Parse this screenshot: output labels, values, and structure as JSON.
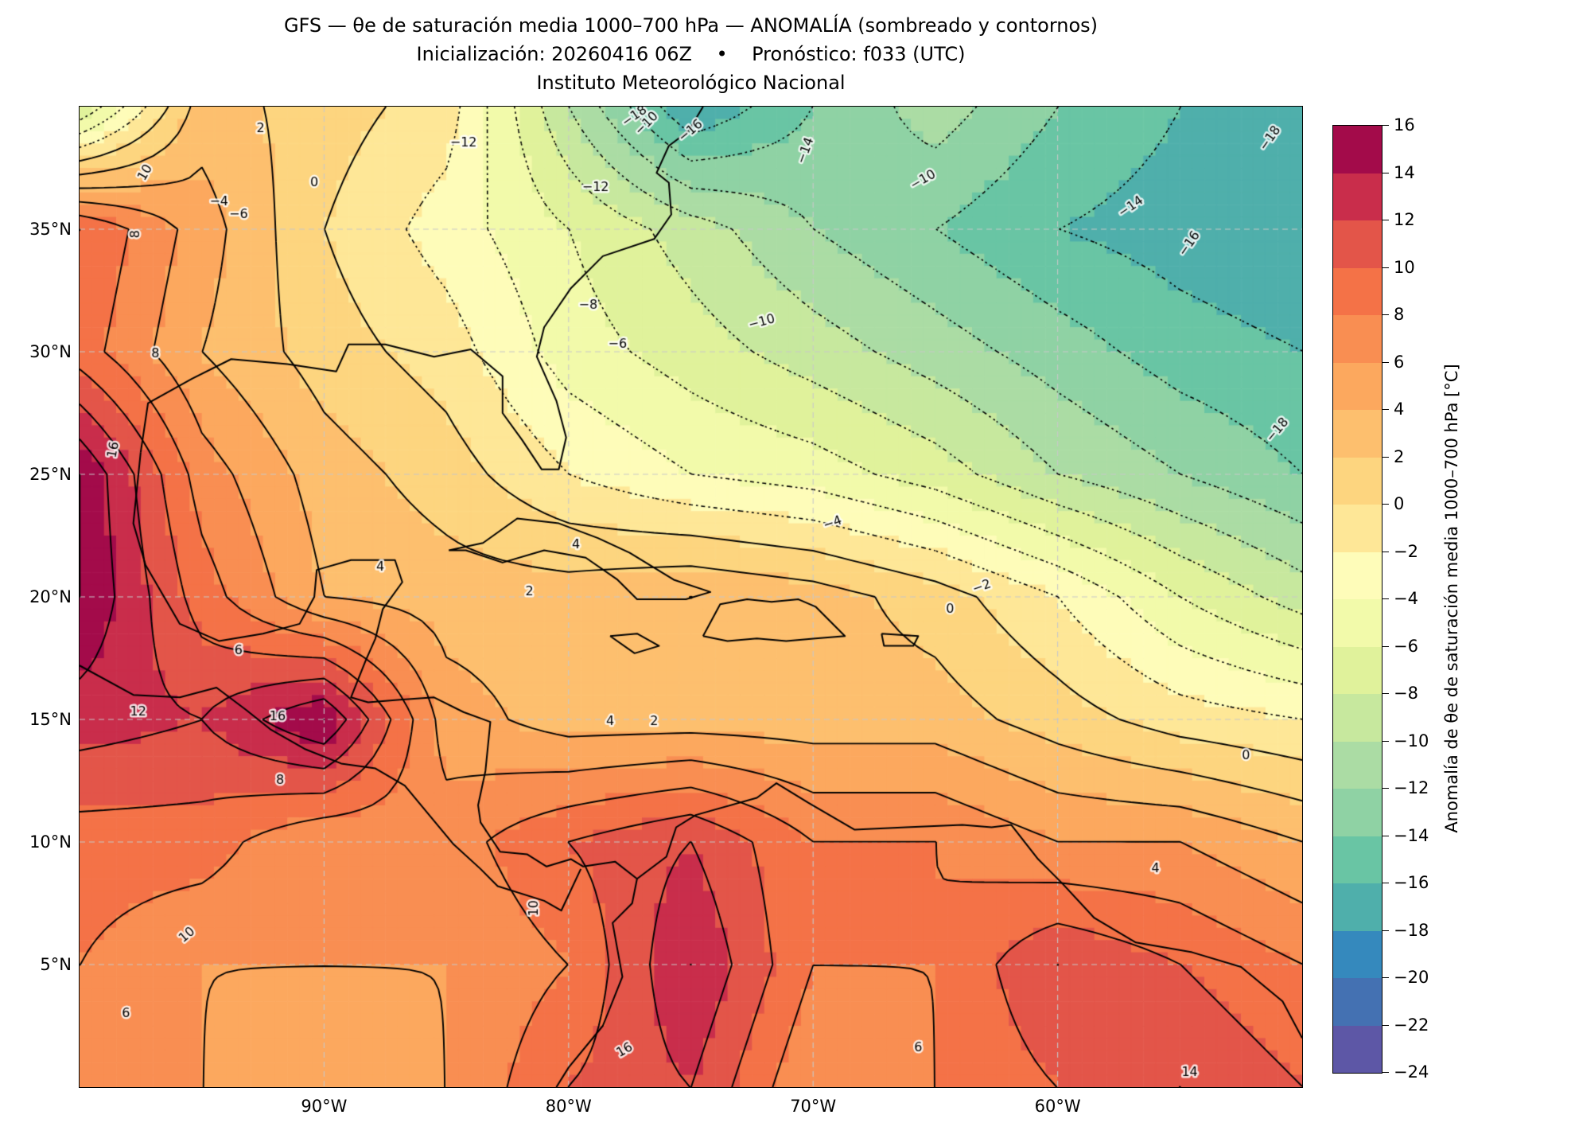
{
  "title": {
    "line1": "GFS — θe de saturación media 1000–700 hPa — ANOMALÍA (sombreado y contornos)",
    "line2": "Inicialización: 20260416 06Z    •    Pronóstico: f033 (UTC)",
    "line3": "Instituto Meteorológico Nacional"
  },
  "axes": {
    "lat_ticks": [
      {
        "label": "35°N",
        "lat": 35
      },
      {
        "label": "30°N",
        "lat": 30
      },
      {
        "label": "25°N",
        "lat": 25
      },
      {
        "label": "20°N",
        "lat": 20
      },
      {
        "label": "15°N",
        "lat": 15
      },
      {
        "label": "10°N",
        "lat": 10
      },
      {
        "label": "5°N",
        "lat": 5
      }
    ],
    "lon_ticks": [
      {
        "label": "90°W",
        "lon": -90
      },
      {
        "label": "80°W",
        "lon": -80
      },
      {
        "label": "70°W",
        "lon": -70
      },
      {
        "label": "60°W",
        "lon": -60
      }
    ]
  },
  "colorbar": {
    "label": "Anomalía de θe de saturación media 1000–700 hPa [°C]",
    "min": -24,
    "max": 16,
    "step": 2,
    "tick_values": [
      16,
      14,
      12,
      10,
      8,
      6,
      4,
      2,
      0,
      -2,
      -4,
      -6,
      -8,
      -10,
      -12,
      -14,
      -16,
      -18,
      -20,
      -22,
      -24
    ],
    "bins": [
      {
        "from": -24,
        "to": -22,
        "color": "#5d57a6"
      },
      {
        "from": -22,
        "to": -20,
        "color": "#4471b2"
      },
      {
        "from": -20,
        "to": -18,
        "color": "#3589bd"
      },
      {
        "from": -18,
        "to": -16,
        "color": "#4fafab"
      },
      {
        "from": -16,
        "to": -14,
        "color": "#69c5a4"
      },
      {
        "from": -14,
        "to": -12,
        "color": "#8fd2a4"
      },
      {
        "from": -12,
        "to": -10,
        "color": "#abdca4"
      },
      {
        "from": -10,
        "to": -8,
        "color": "#c7e89e"
      },
      {
        "from": -8,
        "to": -6,
        "color": "#e0f29b"
      },
      {
        "from": -6,
        "to": -4,
        "color": "#f2faaa"
      },
      {
        "from": -4,
        "to": -2,
        "color": "#fefcb9"
      },
      {
        "from": -2,
        "to": 0,
        "color": "#fee797"
      },
      {
        "from": 0,
        "to": 2,
        "color": "#fdd57f"
      },
      {
        "from": 2,
        "to": 4,
        "color": "#fdbf6e"
      },
      {
        "from": 4,
        "to": 6,
        "color": "#fca85e"
      },
      {
        "from": 6,
        "to": 8,
        "color": "#f98e52"
      },
      {
        "from": 8,
        "to": 10,
        "color": "#f47247"
      },
      {
        "from": 10,
        "to": 12,
        "color": "#e35549"
      },
      {
        "from": 12,
        "to": 14,
        "color": "#c92d4b"
      },
      {
        "from": 14,
        "to": 16,
        "color": "#a30b4a"
      }
    ]
  },
  "chart_data": {
    "type": "heatmap",
    "title": "GFS — θe de saturación media 1000–700 hPa — ANOMALÍA (sombreado y contornos)",
    "units": "°C",
    "extent": {
      "lon_min": -100,
      "lon_max": -50,
      "lat_min": 0,
      "lat_max": 40
    },
    "x_lon": [
      -100,
      -95,
      -90,
      -85,
      -80,
      -75,
      -70,
      -65,
      -60,
      -55,
      -50
    ],
    "y_lat": [
      40,
      35,
      30,
      25,
      20,
      15,
      10,
      5,
      0
    ],
    "values": [
      [
        -8,
        3,
        1,
        -1,
        -10,
        -18,
        -14,
        -11,
        -14,
        -16,
        -18
      ],
      [
        10,
        5,
        0,
        -3,
        -6,
        -9,
        -12,
        -14,
        -16,
        -17,
        -18
      ],
      [
        9,
        4,
        1,
        -1,
        -5,
        -7,
        -9,
        -11,
        -13,
        -15,
        -16
      ],
      [
        16,
        7,
        3,
        1,
        -2,
        -4,
        -5,
        -7,
        -10,
        -12,
        -14
      ],
      [
        16,
        9,
        4,
        3,
        3,
        4,
        3,
        1,
        -2,
        -6,
        -9
      ],
      [
        13,
        12,
        16,
        5,
        3,
        3,
        3,
        3,
        1,
        -1,
        -2
      ],
      [
        9,
        9,
        6,
        7,
        10,
        12,
        8,
        8,
        6,
        6,
        4
      ],
      [
        8,
        6,
        6,
        6,
        8,
        14,
        8,
        8,
        12,
        10,
        8
      ],
      [
        6,
        6,
        5,
        6,
        10,
        12,
        6,
        8,
        10,
        12,
        10
      ]
    ],
    "contour_level_min": -18,
    "contour_level_max": 16,
    "contour_level_step": 2,
    "contour_style": {
      "negative": "dotted",
      "positive": "solid"
    },
    "gridlines": {
      "lats": [
        5,
        10,
        15,
        20,
        25,
        30,
        35
      ],
      "lons": [
        -90,
        -80,
        -70,
        -60
      ]
    },
    "contour_labels": [
      {
        "v": -18,
        "lon": -77.3,
        "lat": 39.6,
        "rot": -35
      },
      {
        "v": -18,
        "lon": -51.3,
        "lat": 38.7,
        "rot": -55
      },
      {
        "v": -18,
        "lon": -51.0,
        "lat": 26.8,
        "rot": -50
      },
      {
        "v": -16,
        "lon": -54.6,
        "lat": 34.4,
        "rot": -55
      },
      {
        "v": -16,
        "lon": -75.0,
        "lat": 39.0,
        "rot": -40
      },
      {
        "v": -14,
        "lon": -70.3,
        "lat": 38.2,
        "rot": -70
      },
      {
        "v": -14,
        "lon": -57.0,
        "lat": 35.9,
        "rot": -35
      },
      {
        "v": -12,
        "lon": -84.3,
        "lat": 38.5,
        "rot": 0
      },
      {
        "v": -12,
        "lon": -78.9,
        "lat": 36.7,
        "rot": 0
      },
      {
        "v": -10,
        "lon": -76.8,
        "lat": 39.3,
        "rot": -45
      },
      {
        "v": -10,
        "lon": -65.5,
        "lat": 37.0,
        "rot": -30
      },
      {
        "v": -10,
        "lon": -72.1,
        "lat": 31.2,
        "rot": -15
      },
      {
        "v": -8,
        "lon": -79.2,
        "lat": 31.9,
        "rot": 0
      },
      {
        "v": -6,
        "lon": -78.0,
        "lat": 30.3,
        "rot": 0
      },
      {
        "v": -6,
        "lon": -93.5,
        "lat": 35.6,
        "rot": 0
      },
      {
        "v": -4,
        "lon": -94.3,
        "lat": 36.1,
        "rot": 0
      },
      {
        "v": -4,
        "lon": -69.2,
        "lat": 23.0,
        "rot": -20
      },
      {
        "v": -2,
        "lon": -63.1,
        "lat": 20.4,
        "rot": -20
      },
      {
        "v": 0,
        "lon": -90.4,
        "lat": 36.9,
        "rot": 0
      },
      {
        "v": 0,
        "lon": -64.4,
        "lat": 19.5,
        "rot": 0
      },
      {
        "v": 0,
        "lon": -52.3,
        "lat": 13.5,
        "rot": 0
      },
      {
        "v": 2,
        "lon": -92.6,
        "lat": 39.1,
        "rot": 0
      },
      {
        "v": 2,
        "lon": -81.6,
        "lat": 20.2,
        "rot": 0
      },
      {
        "v": 2,
        "lon": -76.5,
        "lat": 14.9,
        "rot": 0
      },
      {
        "v": 4,
        "lon": -79.7,
        "lat": 22.1,
        "rot": 0
      },
      {
        "v": 4,
        "lon": -87.7,
        "lat": 21.2,
        "rot": 0
      },
      {
        "v": 4,
        "lon": -78.3,
        "lat": 14.9,
        "rot": 0
      },
      {
        "v": 4,
        "lon": -56.0,
        "lat": 8.9,
        "rot": 0
      },
      {
        "v": 6,
        "lon": -93.5,
        "lat": 17.8,
        "rot": 0
      },
      {
        "v": 6,
        "lon": -98.1,
        "lat": 3.0,
        "rot": 0
      },
      {
        "v": 6,
        "lon": -65.7,
        "lat": 1.6,
        "rot": 0
      },
      {
        "v": 8,
        "lon": -97.7,
        "lat": 34.8,
        "rot": -90
      },
      {
        "v": 8,
        "lon": -96.9,
        "lat": 29.9,
        "rot": 0
      },
      {
        "v": 8,
        "lon": -91.8,
        "lat": 12.5,
        "rot": 0
      },
      {
        "v": 10,
        "lon": -97.3,
        "lat": 37.3,
        "rot": -60
      },
      {
        "v": 10,
        "lon": -95.6,
        "lat": 6.2,
        "rot": -40
      },
      {
        "v": 10,
        "lon": -81.4,
        "lat": 7.3,
        "rot": -90
      },
      {
        "v": 12,
        "lon": -97.6,
        "lat": 15.3,
        "rot": 0
      },
      {
        "v": 14,
        "lon": -54.6,
        "lat": 0.6,
        "rot": 0
      },
      {
        "v": 16,
        "lon": -91.9,
        "lat": 15.1,
        "rot": 0
      },
      {
        "v": 16,
        "lon": -98.6,
        "lat": 26.0,
        "rot": -80
      },
      {
        "v": 16,
        "lon": -77.7,
        "lat": 1.5,
        "rot": -30
      }
    ],
    "coastlines": [
      [
        [
          -97.5,
          25.9
        ],
        [
          -97.2,
          27.9
        ],
        [
          -95.4,
          28.9
        ],
        [
          -93.8,
          29.7
        ],
        [
          -91.5,
          29.5
        ],
        [
          -89.5,
          29.2
        ],
        [
          -89.0,
          30.3
        ],
        [
          -87.5,
          30.3
        ],
        [
          -85.5,
          29.8
        ],
        [
          -84.0,
          30.1
        ],
        [
          -82.7,
          29.0
        ],
        [
          -82.7,
          27.5
        ],
        [
          -81.9,
          26.4
        ],
        [
          -81.1,
          25.2
        ],
        [
          -80.4,
          25.2
        ],
        [
          -80.1,
          26.5
        ],
        [
          -80.5,
          28.0
        ],
        [
          -81.3,
          29.8
        ],
        [
          -81.0,
          31.0
        ],
        [
          -79.9,
          32.6
        ],
        [
          -78.6,
          33.9
        ],
        [
          -76.5,
          34.6
        ],
        [
          -75.8,
          35.6
        ],
        [
          -75.9,
          36.9
        ],
        [
          -76.4,
          37.3
        ],
        [
          -75.9,
          38.4
        ],
        [
          -75.1,
          39.0
        ],
        [
          -74.5,
          40.0
        ]
      ],
      [
        [
          -97.5,
          25.9
        ],
        [
          -97.8,
          23.0
        ],
        [
          -97.3,
          21.3
        ],
        [
          -95.9,
          18.9
        ],
        [
          -94.3,
          18.2
        ],
        [
          -92.5,
          18.5
        ],
        [
          -91.0,
          18.9
        ],
        [
          -90.4,
          20.0
        ],
        [
          -90.3,
          21.1
        ],
        [
          -88.9,
          21.5
        ],
        [
          -87.1,
          21.5
        ],
        [
          -86.8,
          20.6
        ],
        [
          -87.6,
          19.5
        ],
        [
          -87.9,
          18.3
        ],
        [
          -88.3,
          17.4
        ],
        [
          -88.9,
          15.9
        ],
        [
          -88.2,
          15.7
        ],
        [
          -86.9,
          15.8
        ],
        [
          -85.5,
          15.9
        ],
        [
          -84.3,
          15.3
        ],
        [
          -83.2,
          14.9
        ],
        [
          -83.4,
          12.9
        ],
        [
          -83.7,
          11.5
        ],
        [
          -83.6,
          10.8
        ],
        [
          -82.8,
          9.6
        ],
        [
          -81.7,
          9.5
        ],
        [
          -80.9,
          9.0
        ],
        [
          -79.9,
          9.3
        ],
        [
          -79.4,
          9.0
        ],
        [
          -78.1,
          9.2
        ],
        [
          -77.2,
          8.5
        ],
        [
          -77.4,
          7.5
        ],
        [
          -78.2,
          6.7
        ],
        [
          -77.8,
          4.5
        ],
        [
          -78.6,
          2.5
        ],
        [
          -80.0,
          0.8
        ],
        [
          -80.5,
          0.0
        ]
      ],
      [
        [
          -100.0,
          17.2
        ],
        [
          -97.8,
          16.0
        ],
        [
          -95.9,
          15.9
        ],
        [
          -94.4,
          16.3
        ],
        [
          -93.2,
          15.4
        ],
        [
          -92.2,
          14.6
        ],
        [
          -90.8,
          13.8
        ],
        [
          -89.3,
          13.2
        ],
        [
          -87.9,
          13.0
        ],
        [
          -86.7,
          12.3
        ],
        [
          -85.7,
          11.1
        ],
        [
          -84.7,
          9.9
        ],
        [
          -83.6,
          8.9
        ],
        [
          -82.9,
          8.2
        ],
        [
          -81.0,
          7.6
        ],
        [
          -80.3,
          7.2
        ],
        [
          -79.5,
          8.9
        ]
      ],
      [
        [
          -77.2,
          8.5
        ],
        [
          -76.0,
          9.4
        ],
        [
          -75.6,
          10.6
        ],
        [
          -74.8,
          11.1
        ],
        [
          -72.3,
          11.8
        ],
        [
          -71.5,
          12.4
        ],
        [
          -70.2,
          11.6
        ],
        [
          -68.3,
          10.5
        ],
        [
          -66.2,
          10.6
        ],
        [
          -63.9,
          10.7
        ],
        [
          -62.7,
          10.6
        ],
        [
          -61.9,
          10.7
        ],
        [
          -60.8,
          9.3
        ],
        [
          -59.8,
          8.3
        ],
        [
          -58.5,
          6.9
        ],
        [
          -56.8,
          5.9
        ],
        [
          -54.5,
          5.5
        ],
        [
          -52.5,
          4.9
        ],
        [
          -50.8,
          3.5
        ],
        [
          -50.0,
          2.0
        ]
      ],
      [
        [
          -84.9,
          21.9
        ],
        [
          -83.5,
          22.2
        ],
        [
          -82.1,
          23.2
        ],
        [
          -80.4,
          23.0
        ],
        [
          -78.8,
          22.4
        ],
        [
          -77.5,
          21.8
        ],
        [
          -75.7,
          20.7
        ],
        [
          -74.2,
          20.2
        ],
        [
          -75.2,
          19.9
        ],
        [
          -77.2,
          19.9
        ],
        [
          -78.0,
          20.7
        ],
        [
          -79.3,
          21.6
        ],
        [
          -81.0,
          21.9
        ],
        [
          -82.7,
          21.4
        ],
        [
          -84.2,
          21.9
        ],
        [
          -84.9,
          21.9
        ]
      ],
      [
        [
          -74.5,
          18.4
        ],
        [
          -73.8,
          19.7
        ],
        [
          -72.7,
          19.9
        ],
        [
          -71.7,
          19.8
        ],
        [
          -70.6,
          19.9
        ],
        [
          -69.9,
          19.6
        ],
        [
          -68.7,
          18.4
        ],
        [
          -69.9,
          18.3
        ],
        [
          -71.1,
          18.2
        ],
        [
          -72.3,
          18.3
        ],
        [
          -73.5,
          18.2
        ],
        [
          -74.5,
          18.4
        ]
      ],
      [
        [
          -78.3,
          18.4
        ],
        [
          -77.2,
          18.5
        ],
        [
          -76.3,
          18.0
        ],
        [
          -77.3,
          17.7
        ],
        [
          -78.3,
          18.4
        ]
      ],
      [
        [
          -67.2,
          18.5
        ],
        [
          -65.7,
          18.4
        ],
        [
          -65.9,
          18.0
        ],
        [
          -67.1,
          18.0
        ],
        [
          -67.2,
          18.5
        ]
      ]
    ]
  }
}
